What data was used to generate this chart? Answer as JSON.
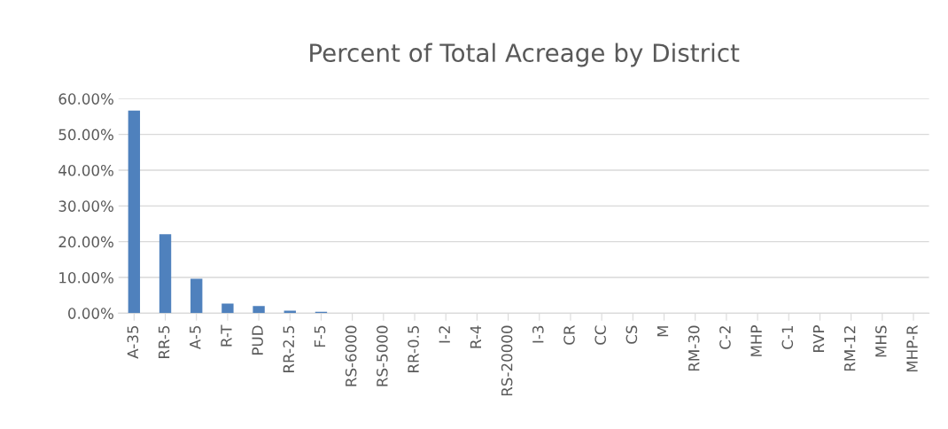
{
  "chart_data": {
    "type": "bar",
    "title": "Percent of Total Acreage by District",
    "categories": [
      "A-35",
      "RR-5",
      "A-5",
      "R-T",
      "PUD",
      "RR-2.5",
      "F-5",
      "RS-6000",
      "RS-5000",
      "RR-0.5",
      "I-2",
      "R-4",
      "RS-20000",
      "I-3",
      "CR",
      "CC",
      "CS",
      "M",
      "RM-30",
      "C-2",
      "MHP",
      "C-1",
      "RVP",
      "RM-12",
      "MHS",
      "MHP-R"
    ],
    "values": [
      56.7,
      22.1,
      9.6,
      2.7,
      2.0,
      0.7,
      0.4,
      0,
      0,
      0,
      0,
      0,
      0,
      0,
      0,
      0,
      0,
      0,
      0,
      0,
      0,
      0,
      0,
      0,
      0,
      0
    ],
    "color": "#4f81bd",
    "ylim": [
      0,
      60
    ],
    "yticks": [
      {
        "value": 0,
        "label": "0.00%"
      },
      {
        "value": 10,
        "label": "10.00%"
      },
      {
        "value": 20,
        "label": "20.00%"
      },
      {
        "value": 30,
        "label": "30.00%"
      },
      {
        "value": 40,
        "label": "40.00%"
      },
      {
        "value": 50,
        "label": "50.00%"
      },
      {
        "value": 60,
        "label": "60.00%"
      }
    ],
    "grid": "y"
  }
}
